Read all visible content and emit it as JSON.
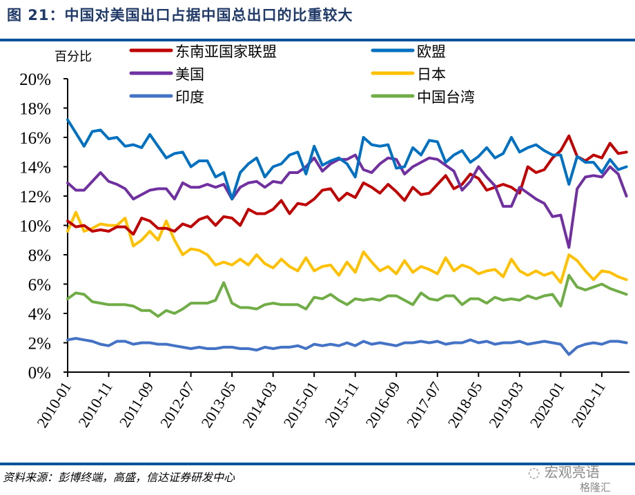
{
  "title": "图 21：中国对美国出口占据中国总出口的比重较大",
  "source": "资料来源：彭博终端，高盛，信达证券研发中心",
  "watermark": {
    "line1": "宏观亮语",
    "line2": "格隆汇"
  },
  "chart_data": {
    "type": "line",
    "title": "",
    "ylabel": "百分比",
    "xlabel": "",
    "ylim": [
      0,
      20
    ],
    "yticks": [
      "0%",
      "2%",
      "4%",
      "6%",
      "8%",
      "10%",
      "12%",
      "14%",
      "16%",
      "18%",
      "20%"
    ],
    "xticks": [
      "2010-01",
      "2010-11",
      "2011-09",
      "2012-07",
      "2013-05",
      "2014-03",
      "2015-01",
      "2015-11",
      "2016-09",
      "2017-07",
      "2018-05",
      "2019-03",
      "2020-01",
      "2020-11"
    ],
    "grid": false,
    "legend_placement": "top",
    "x": [
      "2010-01",
      "2010-03",
      "2010-05",
      "2010-07",
      "2010-09",
      "2010-11",
      "2011-01",
      "2011-03",
      "2011-05",
      "2011-07",
      "2011-09",
      "2011-11",
      "2012-01",
      "2012-03",
      "2012-05",
      "2012-07",
      "2012-09",
      "2012-11",
      "2013-01",
      "2013-03",
      "2013-05",
      "2013-07",
      "2013-09",
      "2013-11",
      "2014-01",
      "2014-03",
      "2014-05",
      "2014-07",
      "2014-09",
      "2014-11",
      "2015-01",
      "2015-03",
      "2015-05",
      "2015-07",
      "2015-09",
      "2015-11",
      "2016-01",
      "2016-03",
      "2016-05",
      "2016-07",
      "2016-09",
      "2016-11",
      "2017-01",
      "2017-03",
      "2017-05",
      "2017-07",
      "2017-09",
      "2017-11",
      "2018-01",
      "2018-03",
      "2018-05",
      "2018-07",
      "2018-09",
      "2018-11",
      "2019-01",
      "2019-03",
      "2019-05",
      "2019-07",
      "2019-09",
      "2019-11",
      "2020-01",
      "2020-03",
      "2020-05",
      "2020-07",
      "2020-09",
      "2020-11",
      "2021-01",
      "2021-03",
      "2021-05"
    ],
    "series": [
      {
        "name": "东南亚国家联盟",
        "color": "#C00000",
        "values": [
          10.3,
          9.9,
          10.0,
          9.6,
          9.7,
          9.6,
          9.9,
          9.9,
          9.4,
          10.5,
          10.3,
          9.8,
          9.8,
          9.6,
          10.1,
          9.9,
          10.4,
          10.6,
          10.0,
          10.6,
          10.5,
          10.0,
          11.1,
          10.8,
          10.8,
          11.1,
          11.7,
          10.8,
          11.5,
          11.4,
          11.8,
          12.4,
          12.5,
          11.7,
          12.2,
          11.9,
          12.9,
          12.6,
          12.2,
          12.8,
          12.3,
          11.7,
          12.6,
          12.1,
          12.2,
          12.8,
          13.4,
          12.5,
          12.8,
          13.5,
          13.2,
          12.4,
          12.6,
          12.8,
          12.6,
          12.2,
          14.0,
          13.6,
          13.8,
          14.6,
          15.1,
          16.1,
          14.7,
          14.4,
          14.8,
          14.6,
          15.6,
          14.9,
          15.0
        ]
      },
      {
        "name": "欧盟",
        "color": "#0070C0",
        "values": [
          17.2,
          16.3,
          15.4,
          16.4,
          16.5,
          15.9,
          16.0,
          15.4,
          15.5,
          15.3,
          16.2,
          15.4,
          14.6,
          14.9,
          15.0,
          14.0,
          14.4,
          14.4,
          13.3,
          13.6,
          11.8,
          13.6,
          14.2,
          14.6,
          13.3,
          14.0,
          14.2,
          14.8,
          15.0,
          13.5,
          15.4,
          14.1,
          14.4,
          14.6,
          14.2,
          13.3,
          16.0,
          15.5,
          15.4,
          15.5,
          13.9,
          14.0,
          15.3,
          14.8,
          15.8,
          15.7,
          14.3,
          14.8,
          15.1,
          14.3,
          14.7,
          15.3,
          14.6,
          14.9,
          16.0,
          15.0,
          15.3,
          15.5,
          15.1,
          14.8,
          14.8,
          12.8,
          14.7,
          14.3,
          14.3,
          13.6,
          14.5,
          13.8,
          14.0
        ]
      },
      {
        "name": "美国",
        "color": "#7030A0",
        "values": [
          12.9,
          12.4,
          12.4,
          13.0,
          13.6,
          13.0,
          12.8,
          12.5,
          11.8,
          12.1,
          12.4,
          12.5,
          12.5,
          11.8,
          12.9,
          12.6,
          12.6,
          12.8,
          12.6,
          12.8,
          11.8,
          12.6,
          12.9,
          13.0,
          12.6,
          13.0,
          12.9,
          13.6,
          13.6,
          14.0,
          14.6,
          13.7,
          14.2,
          14.5,
          14.5,
          14.8,
          13.8,
          13.6,
          14.2,
          14.6,
          14.5,
          13.5,
          14.0,
          14.3,
          14.6,
          14.5,
          14.1,
          13.7,
          12.4,
          13.0,
          14.0,
          13.3,
          12.7,
          11.3,
          11.3,
          12.6,
          12.2,
          11.8,
          11.5,
          10.6,
          10.7,
          8.5,
          12.5,
          13.3,
          13.4,
          13.3,
          14.0,
          13.5,
          12.0
        ]
      },
      {
        "name": "日本",
        "color": "#FFC000",
        "values": [
          9.6,
          10.9,
          9.6,
          9.8,
          10.1,
          10.0,
          10.0,
          10.5,
          8.6,
          9.0,
          9.6,
          9.0,
          10.3,
          9.0,
          8.0,
          8.4,
          8.3,
          8.0,
          7.3,
          7.5,
          7.3,
          7.7,
          7.3,
          8.0,
          7.4,
          7.1,
          7.7,
          7.2,
          6.9,
          7.8,
          6.9,
          7.2,
          7.3,
          6.6,
          7.5,
          6.8,
          8.2,
          7.5,
          6.9,
          7.2,
          6.7,
          7.6,
          6.8,
          7.2,
          7.0,
          6.7,
          7.8,
          6.9,
          7.3,
          7.1,
          6.7,
          6.9,
          7.0,
          6.5,
          7.7,
          6.9,
          6.6,
          6.9,
          6.6,
          6.8,
          6.1,
          8.0,
          7.6,
          6.9,
          6.3,
          6.9,
          6.8,
          6.5,
          6.3
        ]
      },
      {
        "name": "印度",
        "color": "#4472C4",
        "values": [
          2.2,
          2.3,
          2.2,
          2.1,
          1.9,
          1.8,
          2.1,
          2.1,
          1.9,
          2.0,
          2.0,
          1.9,
          1.9,
          1.8,
          1.7,
          1.6,
          1.7,
          1.6,
          1.6,
          1.7,
          1.7,
          1.6,
          1.6,
          1.5,
          1.7,
          1.6,
          1.7,
          1.7,
          1.8,
          1.6,
          1.9,
          1.8,
          1.9,
          1.8,
          2.0,
          1.8,
          2.1,
          1.9,
          2.0,
          1.9,
          1.8,
          2.0,
          2.0,
          2.1,
          2.0,
          2.1,
          1.9,
          2.0,
          2.0,
          2.2,
          2.0,
          2.1,
          1.9,
          2.0,
          2.0,
          2.1,
          1.9,
          2.0,
          2.1,
          2.0,
          1.9,
          1.2,
          1.7,
          1.9,
          2.0,
          1.9,
          2.1,
          2.1,
          2.0
        ]
      },
      {
        "name": "中国台湾",
        "color": "#70AD47",
        "values": [
          5.0,
          5.4,
          5.3,
          4.8,
          4.7,
          4.6,
          4.6,
          4.6,
          4.5,
          4.2,
          4.2,
          3.8,
          4.2,
          4.0,
          4.3,
          4.7,
          4.7,
          4.7,
          4.9,
          6.1,
          4.7,
          4.4,
          4.4,
          4.3,
          4.6,
          4.7,
          4.6,
          4.6,
          4.6,
          4.3,
          5.1,
          5.0,
          5.3,
          4.9,
          4.6,
          5.0,
          4.9,
          5.0,
          4.9,
          5.2,
          5.2,
          4.9,
          4.6,
          5.4,
          5.0,
          4.9,
          5.2,
          5.2,
          4.6,
          5.0,
          5.0,
          4.7,
          5.1,
          4.9,
          5.0,
          4.9,
          5.2,
          5.0,
          5.2,
          5.3,
          4.5,
          6.6,
          5.8,
          5.6,
          5.8,
          6.0,
          5.7,
          5.5,
          5.3
        ]
      }
    ]
  }
}
